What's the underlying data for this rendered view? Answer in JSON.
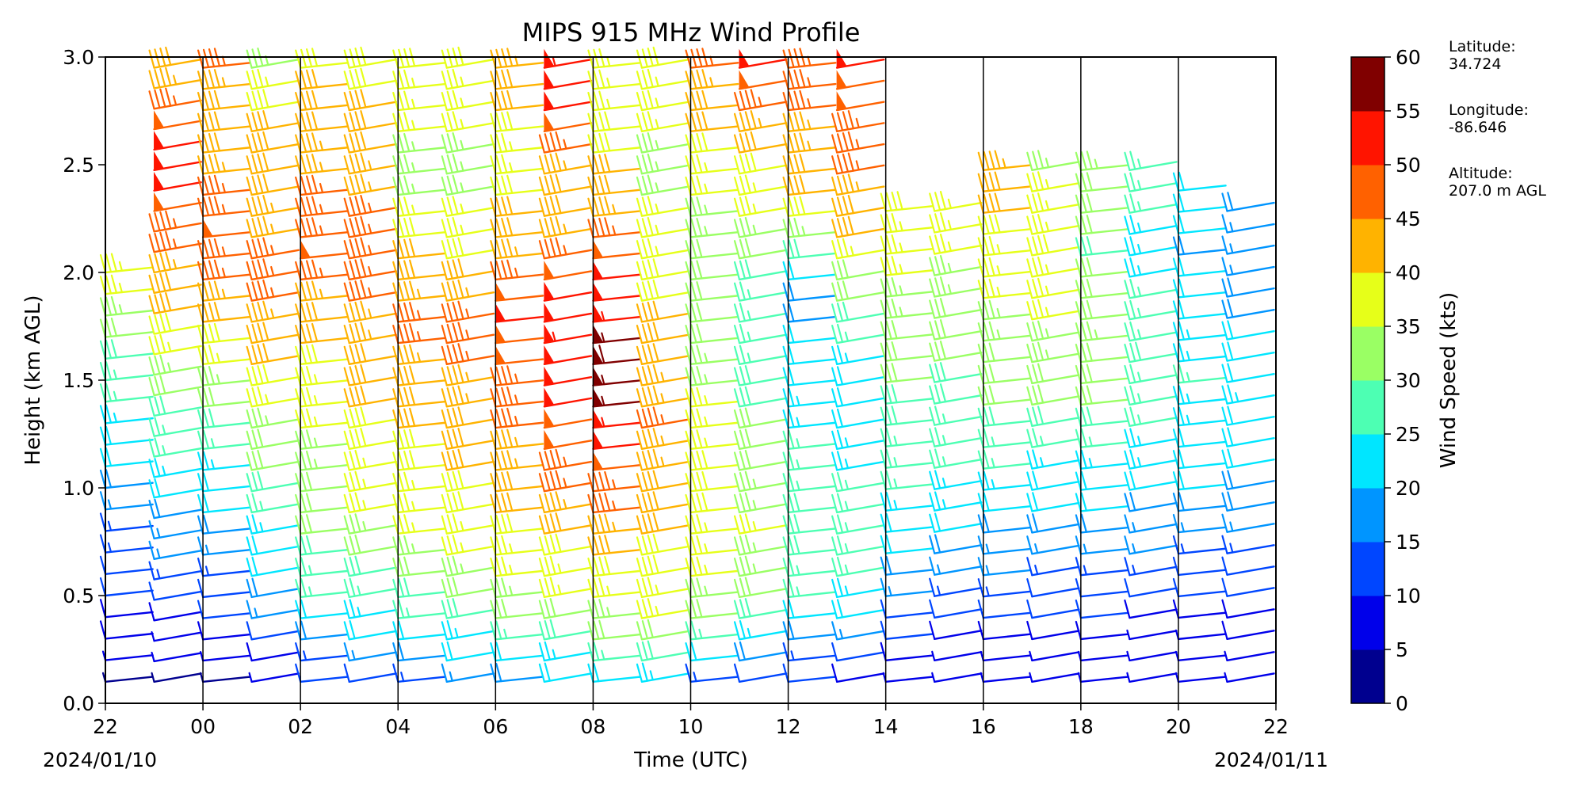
{
  "chart_data": {
    "type": "wind_barbs",
    "title": "MIPS 915 MHz Wind Profile",
    "xlabel": "Time (UTC)",
    "ylabel": "Height (km AGL)",
    "x_ticks": [
      "22",
      "00",
      "02",
      "04",
      "06",
      "08",
      "10",
      "12",
      "14",
      "16",
      "18",
      "20",
      "22"
    ],
    "x_start_date": "2024/01/10",
    "x_end_date": "2024/01/11",
    "y_ticks": [
      "0.0",
      "0.5",
      "1.0",
      "1.5",
      "2.0",
      "2.5",
      "3.0"
    ],
    "ylim": [
      0.0,
      3.0
    ],
    "grid": false,
    "colorbar": {
      "label": "Wind Speed (kts)",
      "ticks": [
        "0",
        "5",
        "10",
        "15",
        "20",
        "25",
        "30",
        "35",
        "40",
        "45",
        "50",
        "55",
        "60"
      ],
      "colors": [
        "#00008f",
        "#0000ea",
        "#0046ff",
        "#0095ff",
        "#00e6ff",
        "#4dffb3",
        "#9aff64",
        "#e6ff19",
        "#ffb300",
        "#ff6100",
        "#ff1400",
        "#800000"
      ]
    },
    "columns": [
      {
        "hour": 22.0,
        "speeds": [
          4,
          6,
          8,
          9,
          10,
          11,
          13,
          14,
          16,
          18,
          20,
          22,
          24,
          26,
          27,
          29,
          31,
          33,
          35,
          37
        ]
      },
      {
        "hour": 23.0,
        "speeds": [
          3,
          5,
          7,
          9,
          11,
          13,
          15,
          17,
          19,
          21,
          23,
          25,
          27,
          29,
          31,
          33,
          36,
          38,
          40,
          42,
          44,
          45,
          46,
          48,
          50,
          52,
          50,
          48,
          46,
          44,
          42
        ]
      },
      {
        "hour": 0.0,
        "speeds": [
          4,
          6,
          8,
          10,
          12,
          14,
          16,
          18,
          20,
          22,
          24,
          26,
          28,
          30,
          33,
          35,
          38,
          40,
          43,
          45,
          47,
          48,
          47,
          45,
          44,
          42,
          40,
          42,
          44,
          46
        ]
      },
      {
        "hour": 1.0,
        "speeds": [
          7,
          9,
          12,
          15,
          18,
          20,
          22,
          24,
          26,
          28,
          30,
          32,
          34,
          36,
          38,
          40,
          42,
          44,
          45,
          46,
          45,
          44,
          43,
          42,
          42,
          41,
          40,
          38,
          36,
          34
        ]
      },
      {
        "hour": 2.0,
        "speeds": [
          10,
          14,
          18,
          22,
          25,
          27,
          29,
          30,
          31,
          32,
          33,
          34,
          35,
          36,
          37,
          38,
          40,
          42,
          44,
          46,
          48,
          47,
          46,
          45,
          44,
          43,
          42,
          41,
          40,
          39
        ]
      },
      {
        "hour": 3.0,
        "speeds": [
          12,
          16,
          20,
          24,
          27,
          29,
          31,
          33,
          35,
          36,
          37,
          38,
          39,
          40,
          41,
          42,
          43,
          44,
          45,
          46,
          47,
          46,
          45,
          44,
          43,
          42,
          41,
          40,
          39,
          38
        ]
      },
      {
        "hour": 4.0,
        "speeds": [
          14,
          18,
          22,
          26,
          29,
          31,
          33,
          35,
          36,
          37,
          38,
          39,
          40,
          41,
          42,
          44,
          45,
          46,
          44,
          42,
          40,
          38,
          36,
          34,
          33,
          34,
          35,
          36,
          37,
          38
        ]
      },
      {
        "hour": 5.0,
        "speeds": [
          16,
          20,
          24,
          28,
          31,
          33,
          35,
          37,
          38,
          39,
          40,
          41,
          42,
          43,
          44,
          45,
          46,
          45,
          43,
          41,
          39,
          37,
          35,
          34,
          33,
          34,
          35,
          36,
          37,
          38
        ]
      },
      {
        "hour": 6.0,
        "speeds": [
          18,
          22,
          26,
          30,
          33,
          35,
          37,
          39,
          40,
          42,
          43,
          44,
          45,
          46,
          47,
          48,
          49,
          50,
          48,
          46,
          44,
          42,
          40,
          38,
          36,
          37,
          38,
          40,
          42,
          44
        ]
      },
      {
        "hour": 7.0,
        "speeds": [
          20,
          24,
          28,
          32,
          35,
          37,
          39,
          41,
          43,
          45,
          47,
          48,
          49,
          50,
          51,
          52,
          53,
          52,
          50,
          48,
          46,
          44,
          42,
          40,
          44,
          46,
          48,
          50,
          52,
          54
        ]
      },
      {
        "hour": 8.0,
        "speeds": [
          22,
          26,
          30,
          34,
          37,
          39,
          41,
          43,
          45,
          47,
          49,
          51,
          53,
          55,
          57,
          58,
          56,
          54,
          52,
          50,
          48,
          46,
          44,
          42,
          40,
          39,
          38,
          37,
          36,
          35
        ]
      },
      {
        "hour": 9.0,
        "speeds": [
          24,
          28,
          32,
          35,
          37,
          38,
          39,
          40,
          41,
          42,
          43,
          44,
          45,
          44,
          43,
          42,
          41,
          40,
          39,
          38,
          37,
          36,
          35,
          34,
          33,
          34,
          35,
          36,
          37,
          38
        ]
      },
      {
        "hour": 10.0,
        "speeds": [
          14,
          20,
          26,
          30,
          33,
          35,
          36,
          37,
          38,
          39,
          38,
          37,
          36,
          35,
          34,
          33,
          32,
          31,
          30,
          31,
          32,
          33,
          34,
          35,
          36,
          38,
          40,
          42,
          44,
          46
        ]
      },
      {
        "hour": 11.0,
        "speeds": [
          12,
          18,
          24,
          28,
          31,
          33,
          34,
          35,
          34,
          33,
          32,
          31,
          30,
          29,
          28,
          27,
          26,
          25,
          27,
          29,
          31,
          33,
          35,
          37,
          39,
          41,
          43,
          45,
          48,
          52
        ]
      },
      {
        "hour": 12.0,
        "speeds": [
          10,
          14,
          18,
          22,
          25,
          27,
          28,
          29,
          28,
          27,
          26,
          25,
          24,
          23,
          22,
          21,
          20,
          19,
          18,
          22,
          28,
          34,
          38,
          40,
          42,
          43,
          44,
          45,
          46,
          47
        ]
      },
      {
        "hour": 13.0,
        "speeds": [
          8,
          12,
          16,
          20,
          23,
          25,
          26,
          27,
          26,
          25,
          24,
          23,
          22,
          21,
          22,
          24,
          26,
          28,
          30,
          32,
          36,
          40,
          42,
          44,
          45,
          46,
          47,
          48,
          49,
          50
        ]
      },
      {
        "hour": 14.0,
        "speeds": [
          6,
          8,
          10,
          12,
          15,
          18,
          20,
          22,
          24,
          25,
          26,
          27,
          28,
          29,
          30,
          31,
          32,
          33,
          34,
          35,
          36,
          37,
          38
        ]
      },
      {
        "hour": 15.0,
        "speeds": [
          5,
          7,
          9,
          11,
          14,
          17,
          19,
          21,
          23,
          24,
          25,
          26,
          27,
          28,
          29,
          30,
          31,
          32,
          33,
          34,
          35,
          36,
          37
        ]
      },
      {
        "hour": 16.0,
        "speeds": [
          5,
          7,
          9,
          11,
          13,
          15,
          17,
          19,
          21,
          23,
          25,
          27,
          29,
          30,
          31,
          32,
          33,
          34,
          35,
          36,
          37,
          38,
          40,
          42,
          44
        ]
      },
      {
        "hour": 17.0,
        "speeds": [
          5,
          6,
          8,
          10,
          12,
          14,
          16,
          18,
          20,
          22,
          24,
          26,
          28,
          30,
          32,
          33,
          34,
          35,
          36,
          37,
          38,
          37,
          36,
          35,
          34
        ]
      },
      {
        "hour": 18.0,
        "speeds": [
          5,
          6,
          8,
          10,
          12,
          14,
          16,
          18,
          20,
          22,
          24,
          26,
          28,
          30,
          31,
          32,
          33,
          32,
          31,
          30,
          29,
          30,
          31,
          32,
          33
        ]
      },
      {
        "hour": 19.0,
        "speeds": [
          5,
          6,
          7,
          9,
          11,
          13,
          15,
          17,
          19,
          21,
          23,
          24,
          25,
          26,
          27,
          28,
          27,
          26,
          25,
          24,
          23,
          24,
          25,
          26,
          27
        ]
      },
      {
        "hour": 20.0,
        "speeds": [
          5,
          6,
          7,
          8,
          10,
          12,
          14,
          16,
          18,
          20,
          21,
          22,
          23,
          24,
          25,
          24,
          23,
          22,
          21,
          20,
          19,
          20,
          21,
          22
        ]
      },
      {
        "hour": 21.0,
        "speeds": [
          6,
          7,
          8,
          9,
          10,
          12,
          14,
          16,
          18,
          19,
          20,
          21,
          22,
          23,
          22,
          21,
          20,
          19,
          18,
          17,
          16,
          17,
          18
        ]
      }
    ]
  },
  "site": {
    "latitude_label": "Latitude:",
    "latitude_value": "34.724",
    "longitude_label": "Longitude:",
    "longitude_value": "-86.646",
    "altitude_label": "Altitude:",
    "altitude_value": "207.0 m AGL"
  }
}
